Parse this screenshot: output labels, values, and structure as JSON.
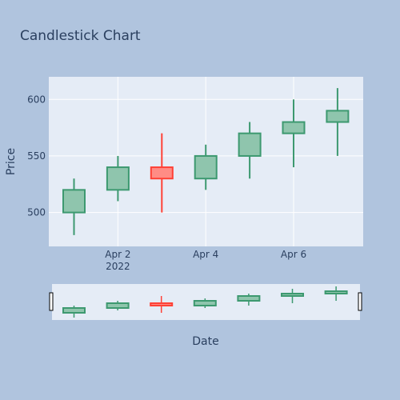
{
  "chart_data": {
    "type": "candlestick",
    "title": "Candlestick Chart",
    "xlabel": "Date",
    "ylabel": "Price",
    "x": [
      "2022-04-01",
      "2022-04-02",
      "2022-04-03",
      "2022-04-04",
      "2022-04-05",
      "2022-04-06",
      "2022-04-07"
    ],
    "open": [
      500,
      520,
      540,
      530,
      550,
      570,
      580
    ],
    "high": [
      530,
      550,
      570,
      560,
      580,
      600,
      610
    ],
    "low": [
      480,
      510,
      500,
      520,
      530,
      540,
      550
    ],
    "close": [
      520,
      540,
      530,
      550,
      570,
      580,
      590
    ],
    "ylim": [
      470,
      620
    ],
    "yticks": [
      500,
      550,
      600
    ],
    "xticks": [
      {
        "date": "2022-04-02",
        "label": "Apr 2",
        "sublabel": "2022"
      },
      {
        "date": "2022-04-04",
        "label": "Apr 4",
        "sublabel": ""
      },
      {
        "date": "2022-04-06",
        "label": "Apr 6",
        "sublabel": ""
      }
    ],
    "colors": {
      "increasing": "#3d9970",
      "increasing_fill": "#8fc5ad",
      "decreasing": "#ff4136",
      "decreasing_fill": "#ff8c85",
      "plot_bg": "#e5ecf6",
      "paper_bg": "#b0c4de"
    },
    "rangeslider": true,
    "grid": true
  }
}
